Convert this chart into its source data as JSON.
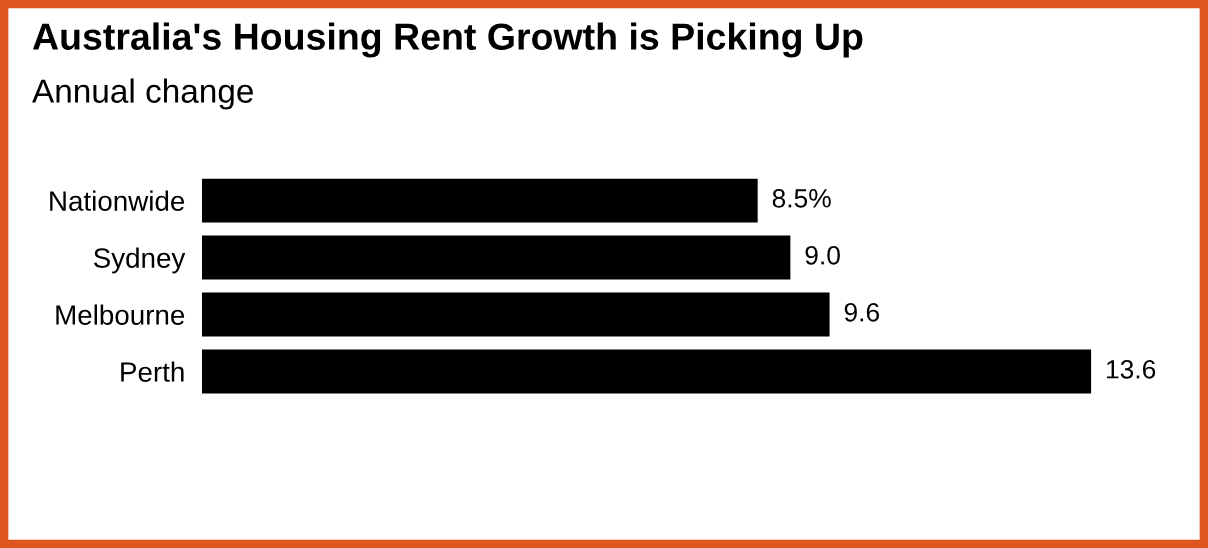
{
  "chart_data": {
    "type": "bar",
    "orientation": "horizontal",
    "title": "Australia's Housing Rent Growth is Picking Up",
    "subtitle": "Annual change",
    "categories": [
      "Nationwide",
      "Sydney",
      "Melbourne",
      "Perth"
    ],
    "values": [
      8.5,
      9.0,
      9.6,
      13.6
    ],
    "value_labels": [
      "8.5%",
      "9.0",
      "9.6",
      "13.6"
    ],
    "color": "#000000",
    "grid": false,
    "legend": false
  }
}
